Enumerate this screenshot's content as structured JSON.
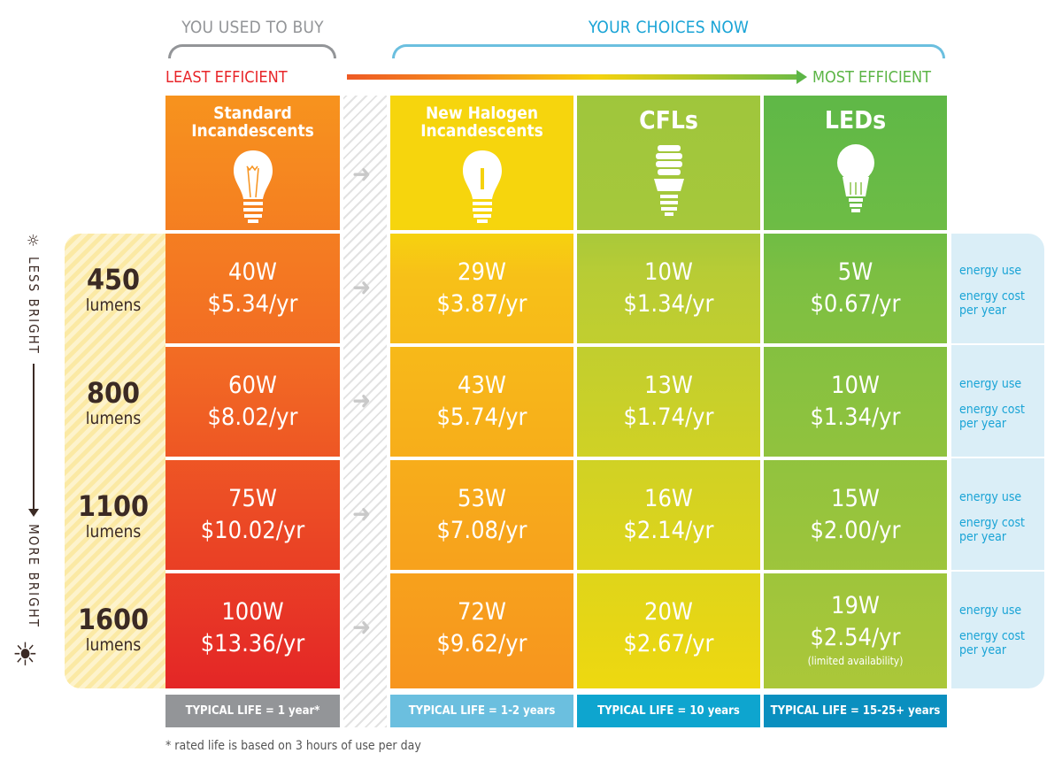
{
  "header": {
    "used_to_buy": "YOU USED TO BUY",
    "choices_now": "YOUR CHOICES NOW",
    "least_efficient": "LEAST EFFICIENT",
    "most_efficient": "MOST EFFICIENT"
  },
  "brightness_axis": {
    "less": "LESS BRIGHT",
    "more": "MORE BRIGHT"
  },
  "lumens": [
    {
      "value": "450",
      "unit": "lumens"
    },
    {
      "value": "800",
      "unit": "lumens"
    },
    {
      "value": "1100",
      "unit": "lumens"
    },
    {
      "value": "1600",
      "unit": "lumens"
    }
  ],
  "columns": [
    {
      "title1": "Standard",
      "title2": "Incandescents",
      "icon": "incandescent-bulb-icon",
      "rows": [
        {
          "watts": "40W",
          "cost": "$5.34/yr"
        },
        {
          "watts": "60W",
          "cost": "$8.02/yr"
        },
        {
          "watts": "75W",
          "cost": "$10.02/yr"
        },
        {
          "watts": "100W",
          "cost": "$13.36/yr"
        }
      ],
      "life": "TYPICAL LIFE = 1 year*"
    },
    {
      "title1": "New Halogen",
      "title2": "Incandescents",
      "icon": "halogen-bulb-icon",
      "rows": [
        {
          "watts": "29W",
          "cost": "$3.87/yr"
        },
        {
          "watts": "43W",
          "cost": "$5.74/yr"
        },
        {
          "watts": "53W",
          "cost": "$7.08/yr"
        },
        {
          "watts": "72W",
          "cost": "$9.62/yr"
        }
      ],
      "life": "TYPICAL LIFE = 1-2 years"
    },
    {
      "title1": "CFLs",
      "icon": "cfl-bulb-icon",
      "rows": [
        {
          "watts": "10W",
          "cost": "$1.34/yr"
        },
        {
          "watts": "13W",
          "cost": "$1.74/yr"
        },
        {
          "watts": "16W",
          "cost": "$2.14/yr"
        },
        {
          "watts": "20W",
          "cost": "$2.67/yr"
        }
      ],
      "life": "TYPICAL LIFE = 10 years"
    },
    {
      "title1": "LEDs",
      "icon": "led-bulb-icon",
      "rows": [
        {
          "watts": "5W",
          "cost": "$0.67/yr"
        },
        {
          "watts": "10W",
          "cost": "$1.34/yr"
        },
        {
          "watts": "15W",
          "cost": "$2.00/yr"
        },
        {
          "watts": "19W",
          "cost": "$2.54/yr",
          "note": "(limited availability)"
        }
      ],
      "life": "TYPICAL LIFE = 15-25+ years"
    }
  ],
  "row_labels": {
    "energy_use": "energy use",
    "energy_cost": "energy cost",
    "per_year": "per year"
  },
  "footnote": "* rated life is based on 3 hours of use per day",
  "colors": {
    "least": "#e8262a",
    "most": "#5cb546",
    "label_blue": "#1aa4d6",
    "life": [
      "#939598",
      "#6bbfdf",
      "#0ea5cf",
      "#0a8fbf"
    ]
  }
}
